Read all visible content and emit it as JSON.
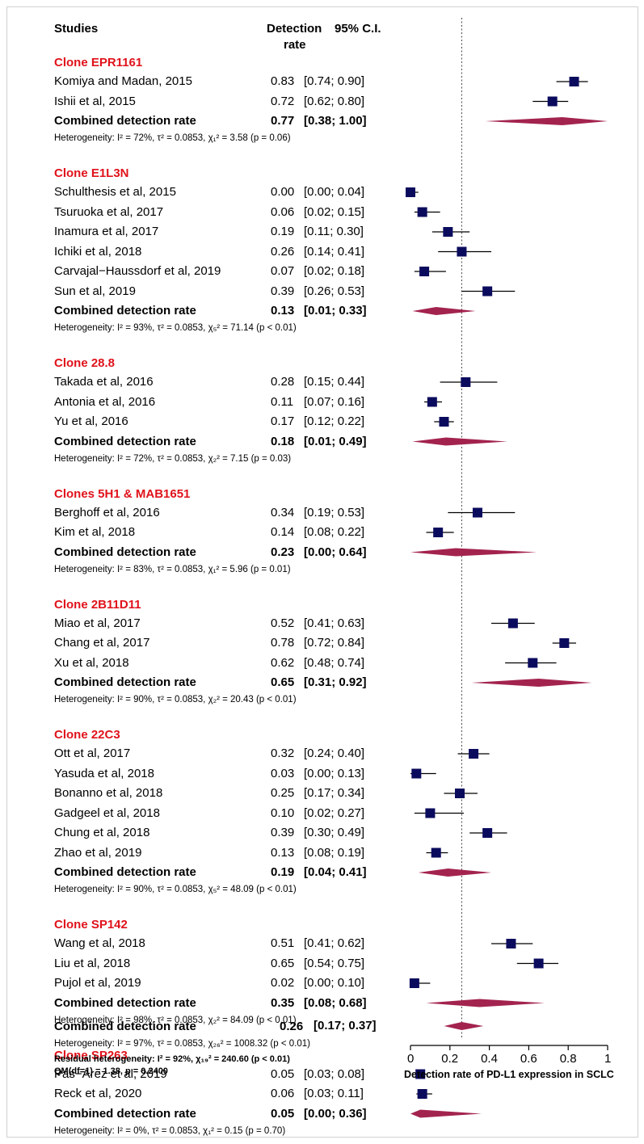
{
  "colors": {
    "group_title": "#e0121b",
    "marker": "#0b0b5e",
    "diamond": "#a3234f",
    "line": "#000000"
  },
  "headers": {
    "studies": "Studies",
    "rate_line1": "Detection",
    "rate_line2": "rate",
    "ci": "95% C.I."
  },
  "chart_data": {
    "type": "forest",
    "xlabel": "Detection rate of PD-L1 expression in SCLC",
    "xlim": [
      0,
      1
    ],
    "xticks": [
      0,
      0.2,
      0.4,
      0.6,
      0.8,
      1
    ],
    "xtick_labels": [
      "0",
      "0.2",
      "0.4",
      "0.6",
      "0.8",
      "1"
    ],
    "reference_line": 0.26,
    "groups": [
      {
        "title": "Clone EPR1161",
        "studies": [
          {
            "name": "Komiya and Madan, 2015",
            "rate_text": "0.83",
            "ci_text": "[0.74; 0.90]",
            "rate": 0.83,
            "lower": 0.74,
            "upper": 0.9
          },
          {
            "name": "Ishii et al, 2015",
            "rate_text": "0.72",
            "ci_text": "[0.62; 0.80]",
            "rate": 0.72,
            "lower": 0.62,
            "upper": 0.8
          }
        ],
        "combined": {
          "label": "Combined detection rate",
          "rate_text": "0.77",
          "ci_text": "[0.38; 1.00]",
          "rate": 0.77,
          "lower": 0.38,
          "upper": 1.0
        },
        "heterogeneity": "Heterogeneity: I² = 72%, τ² = 0.0853, χ₁² = 3.58 (p = 0.06)"
      },
      {
        "title": "Clone E1L3N",
        "studies": [
          {
            "name": "Schulthesis et al, 2015",
            "rate_text": "0.00",
            "ci_text": "[0.00; 0.04]",
            "rate": 0.0,
            "lower": 0.0,
            "upper": 0.04
          },
          {
            "name": "Tsuruoka et al, 2017",
            "rate_text": "0.06",
            "ci_text": "[0.02; 0.15]",
            "rate": 0.06,
            "lower": 0.02,
            "upper": 0.15
          },
          {
            "name": "Inamura et al, 2017",
            "rate_text": "0.19",
            "ci_text": "[0.11; 0.30]",
            "rate": 0.19,
            "lower": 0.11,
            "upper": 0.3
          },
          {
            "name": "Ichiki et al, 2018",
            "rate_text": "0.26",
            "ci_text": "[0.14; 0.41]",
            "rate": 0.26,
            "lower": 0.14,
            "upper": 0.41
          },
          {
            "name": "Carvajal−Haussdorf et al, 2019",
            "rate_text": "0.07",
            "ci_text": "[0.02; 0.18]",
            "rate": 0.07,
            "lower": 0.02,
            "upper": 0.18
          },
          {
            "name": "Sun et al, 2019",
            "rate_text": "0.39",
            "ci_text": "[0.26; 0.53]",
            "rate": 0.39,
            "lower": 0.26,
            "upper": 0.53
          }
        ],
        "combined": {
          "label": "Combined detection rate",
          "rate_text": "0.13",
          "ci_text": "[0.01; 0.33]",
          "rate": 0.13,
          "lower": 0.01,
          "upper": 0.33
        },
        "heterogeneity": "Heterogeneity: I² = 93%, τ² = 0.0853, χ₅² = 71.14 (p < 0.01)"
      },
      {
        "title": "Clone 28.8",
        "studies": [
          {
            "name": "Takada et al, 2016",
            "rate_text": "0.28",
            "ci_text": "[0.15; 0.44]",
            "rate": 0.28,
            "lower": 0.15,
            "upper": 0.44
          },
          {
            "name": "Antonia et al, 2016",
            "rate_text": "0.11",
            "ci_text": "[0.07; 0.16]",
            "rate": 0.11,
            "lower": 0.07,
            "upper": 0.16
          },
          {
            "name": "Yu et al, 2016",
            "rate_text": "0.17",
            "ci_text": "[0.12; 0.22]",
            "rate": 0.17,
            "lower": 0.12,
            "upper": 0.22
          }
        ],
        "combined": {
          "label": "Combined detection rate",
          "rate_text": "0.18",
          "ci_text": "[0.01; 0.49]",
          "rate": 0.18,
          "lower": 0.01,
          "upper": 0.49
        },
        "heterogeneity": "Heterogeneity: I² = 72%, τ² = 0.0853, χ₂² = 7.15 (p = 0.03)"
      },
      {
        "title": "Clones 5H1 & MAB1651",
        "studies": [
          {
            "name": "Berghoff et al, 2016",
            "rate_text": "0.34",
            "ci_text": "[0.19; 0.53]",
            "rate": 0.34,
            "lower": 0.19,
            "upper": 0.53
          },
          {
            "name": "Kim et al, 2018",
            "rate_text": "0.14",
            "ci_text": "[0.08; 0.22]",
            "rate": 0.14,
            "lower": 0.08,
            "upper": 0.22
          }
        ],
        "combined": {
          "label": "Combined detection rate",
          "rate_text": "0.23",
          "ci_text": "[0.00; 0.64]",
          "rate": 0.23,
          "lower": 0.0,
          "upper": 0.64
        },
        "heterogeneity": "Heterogeneity: I² = 83%, τ² = 0.0853, χ₁² = 5.96 (p = 0.01)"
      },
      {
        "title": "Clone 2B11D11",
        "studies": [
          {
            "name": "Miao et al, 2017",
            "rate_text": "0.52",
            "ci_text": "[0.41; 0.63]",
            "rate": 0.52,
            "lower": 0.41,
            "upper": 0.63
          },
          {
            "name": "Chang et al, 2017",
            "rate_text": "0.78",
            "ci_text": "[0.72; 0.84]",
            "rate": 0.78,
            "lower": 0.72,
            "upper": 0.84
          },
          {
            "name": "Xu et al, 2018",
            "rate_text": "0.62",
            "ci_text": "[0.48; 0.74]",
            "rate": 0.62,
            "lower": 0.48,
            "upper": 0.74
          }
        ],
        "combined": {
          "label": "Combined detection rate",
          "rate_text": "0.65",
          "ci_text": "[0.31; 0.92]",
          "rate": 0.65,
          "lower": 0.31,
          "upper": 0.92
        },
        "heterogeneity": "Heterogeneity: I² = 90%, τ² = 0.0853, χ₂² = 20.43 (p < 0.01)"
      },
      {
        "title": "Clone 22C3",
        "studies": [
          {
            "name": "Ott et al, 2017",
            "rate_text": "0.32",
            "ci_text": "[0.24; 0.40]",
            "rate": 0.32,
            "lower": 0.24,
            "upper": 0.4
          },
          {
            "name": "Yasuda et al, 2018",
            "rate_text": "0.03",
            "ci_text": "[0.00; 0.13]",
            "rate": 0.03,
            "lower": 0.0,
            "upper": 0.13
          },
          {
            "name": "Bonanno et al, 2018",
            "rate_text": "0.25",
            "ci_text": "[0.17; 0.34]",
            "rate": 0.25,
            "lower": 0.17,
            "upper": 0.34
          },
          {
            "name": "Gadgeel et al, 2018",
            "rate_text": "0.10",
            "ci_text": "[0.02; 0.27]",
            "rate": 0.1,
            "lower": 0.02,
            "upper": 0.27
          },
          {
            "name": "Chung et al, 2018",
            "rate_text": "0.39",
            "ci_text": "[0.30; 0.49]",
            "rate": 0.39,
            "lower": 0.3,
            "upper": 0.49
          },
          {
            "name": "Zhao et al, 2019",
            "rate_text": "0.13",
            "ci_text": "[0.08; 0.19]",
            "rate": 0.13,
            "lower": 0.08,
            "upper": 0.19
          }
        ],
        "combined": {
          "label": "Combined detection rate",
          "rate_text": "0.19",
          "ci_text": "[0.04; 0.41]",
          "rate": 0.19,
          "lower": 0.04,
          "upper": 0.41
        },
        "heterogeneity": "Heterogeneity: I² = 90%, τ² = 0.0853, χ₅² = 48.09 (p < 0.01)"
      },
      {
        "title": "Clone SP142",
        "studies": [
          {
            "name": "Wang et al, 2018",
            "rate_text": "0.51",
            "ci_text": "[0.41; 0.62]",
            "rate": 0.51,
            "lower": 0.41,
            "upper": 0.62
          },
          {
            "name": "Liu et al, 2018",
            "rate_text": "0.65",
            "ci_text": "[0.54; 0.75]",
            "rate": 0.65,
            "lower": 0.54,
            "upper": 0.75
          },
          {
            "name": "Pujol et al, 2019",
            "rate_text": "0.02",
            "ci_text": "[0.00; 0.10]",
            "rate": 0.02,
            "lower": 0.0,
            "upper": 0.1
          }
        ],
        "combined": {
          "label": "Combined detection rate",
          "rate_text": "0.35",
          "ci_text": "[0.08; 0.68]",
          "rate": 0.35,
          "lower": 0.08,
          "upper": 0.68
        },
        "heterogeneity": "Heterogeneity: I² = 98%, τ² = 0.0853, χ₂² = 84.09 (p < 0.01)"
      },
      {
        "title": "Clone SP263",
        "studies": [
          {
            "name": "Pas−Arez et al, 2019",
            "rate_text": "0.05",
            "ci_text": "[0.03; 0.08]",
            "rate": 0.05,
            "lower": 0.03,
            "upper": 0.08
          },
          {
            "name": "Reck et al, 2020",
            "rate_text": "0.06",
            "ci_text": "[0.03; 0.11]",
            "rate": 0.06,
            "lower": 0.03,
            "upper": 0.11
          }
        ],
        "combined": {
          "label": "Combined detection rate",
          "rate_text": "0.05",
          "ci_text": "[0.00; 0.36]",
          "rate": 0.05,
          "lower": 0.0,
          "upper": 0.36
        },
        "heterogeneity": "Heterogeneity: I² = 0%, τ² = 0.0853, χ₁² = 0.15 (p = 0.70)"
      }
    ],
    "overall": {
      "label": "Combined detection rate",
      "rate_text": "0.26",
      "ci_text": "[0.17; 0.37]",
      "rate": 0.26,
      "lower": 0.17,
      "upper": 0.37,
      "heterogeneity": "Heterogeneity: I² = 97%, τ² = 0.0853, χ₂₆² = 1008.32 (p < 0.01)",
      "residual": "Residual heterogeneity: I² = 92%, χ₁₉² = 240.60 (p < 0.01)",
      "qm": "QM(df=1) = 1.38, p = 0.2400"
    }
  }
}
